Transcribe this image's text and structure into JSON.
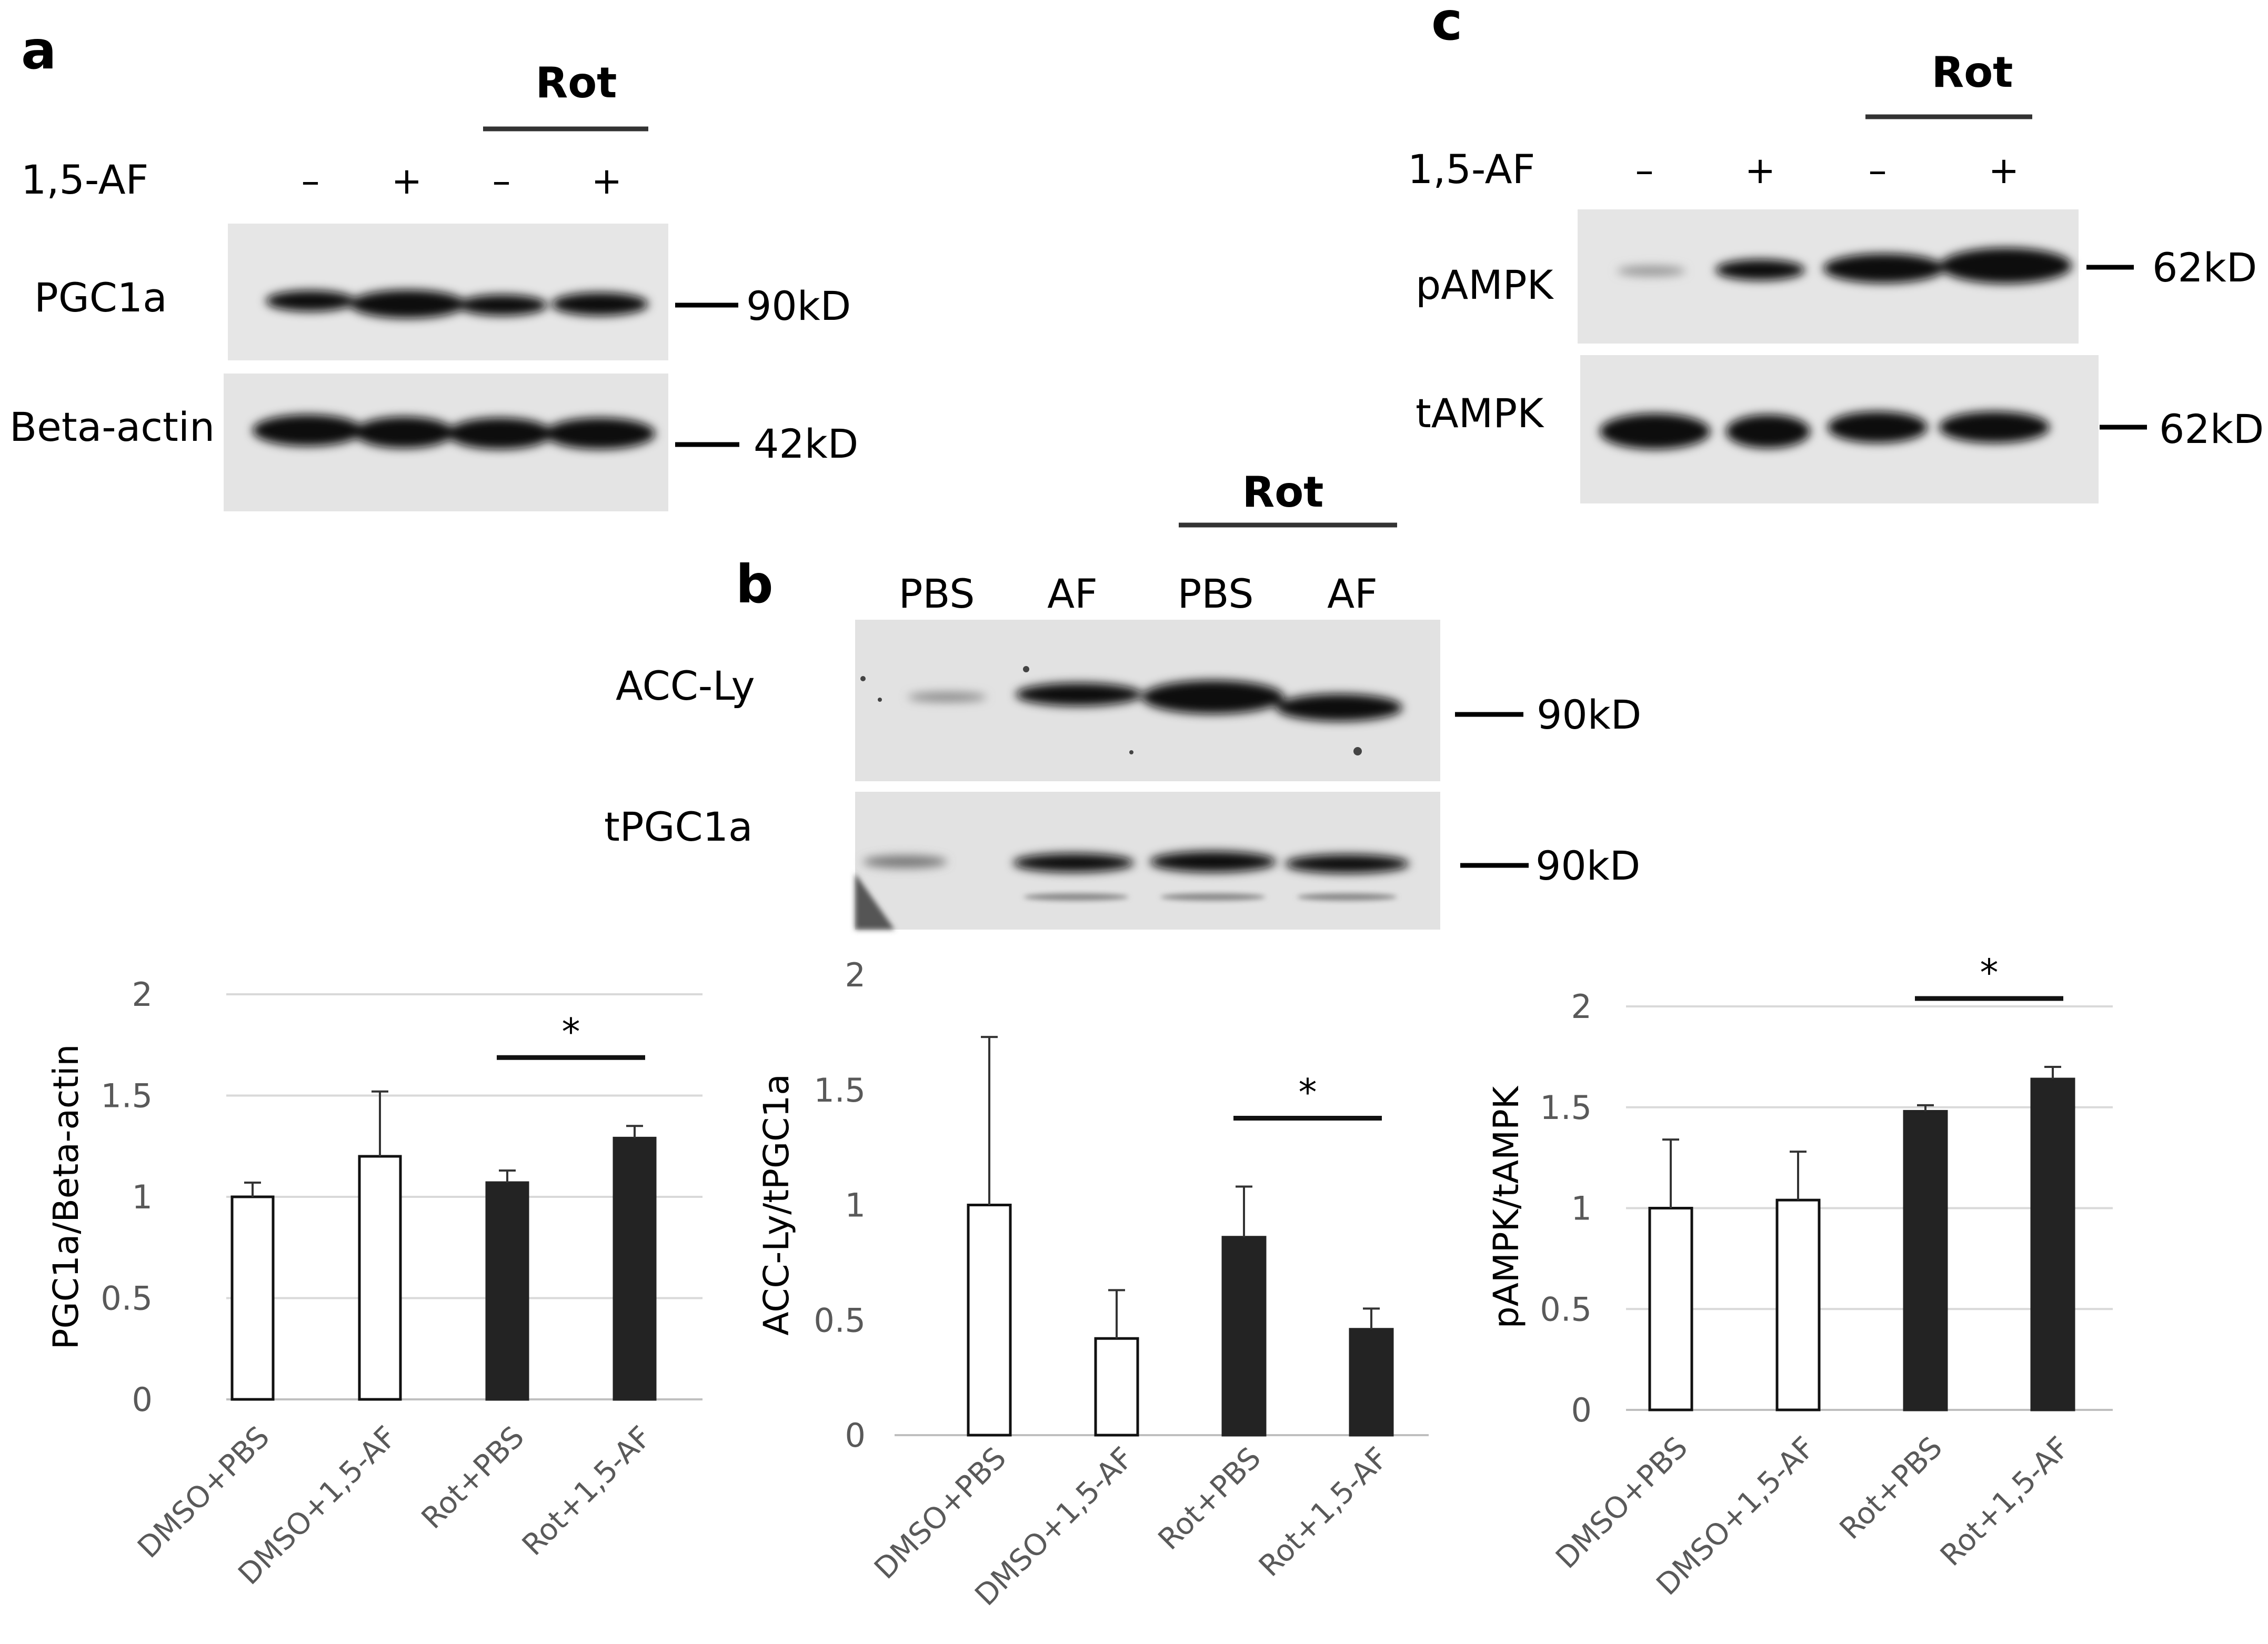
{
  "panels": {
    "a": {
      "letter": "a",
      "rot_label": "Rot",
      "treatment_label": "1,5-AF",
      "signs": [
        "–",
        "+",
        "–",
        "+"
      ],
      "blots": [
        {
          "label": "PGC1a",
          "size_label": "90kD"
        },
        {
          "label": "Beta-actin",
          "size_label": "42kD"
        }
      ]
    },
    "b": {
      "letter": "b",
      "rot_label": "Rot",
      "lane_labels": [
        "PBS",
        "AF",
        "PBS",
        "AF"
      ],
      "blots": [
        {
          "label": "ACC-Ly",
          "size_label": "90kD"
        },
        {
          "label": "tPGC1a",
          "size_label": "90kD"
        }
      ]
    },
    "c": {
      "letter": "c",
      "rot_label": "Rot",
      "treatment_label": "1,5-AF",
      "signs": [
        "–",
        "+",
        "–",
        "+"
      ],
      "blots": [
        {
          "label": "pAMPK",
          "size_label": "62kD"
        },
        {
          "label": "tAMPK",
          "size_label": "62kD"
        }
      ]
    }
  },
  "colors": {
    "control_bar": "#ffffff",
    "rot_bar": "#232323",
    "axis_text": "#595959",
    "gridline": "#d9d9d9"
  },
  "chart_data": [
    {
      "type": "bar",
      "panel": "a",
      "categories": [
        "DMSO+PBS",
        "DMSO+1,5-AF",
        "Rot+PBS",
        "Rot+1,5-AF"
      ],
      "values": [
        1.0,
        1.2,
        1.07,
        1.29
      ],
      "error": [
        0.07,
        0.32,
        0.06,
        0.06
      ],
      "ylabel": "PGC1a/Beta-actin",
      "ylim": [
        0,
        2
      ],
      "yticks": [
        "0",
        "0.5",
        "1",
        "1.5",
        "2"
      ],
      "significance": {
        "between": [
          2,
          3
        ],
        "label": "*"
      },
      "grid": true
    },
    {
      "type": "bar",
      "panel": "b",
      "categories": [
        "DMSO+PBS",
        "DMSO+1,5-AF",
        "Rot+PBS",
        "Rot+1,5-AF"
      ],
      "values": [
        1.0,
        0.42,
        0.86,
        0.46
      ],
      "error": [
        0.73,
        0.21,
        0.22,
        0.09
      ],
      "ylabel": "ACC-Ly/tPGC1a",
      "ylim": [
        0,
        2
      ],
      "yticks": [
        "0",
        "0.5",
        "1",
        "1.5",
        "2"
      ],
      "significance": {
        "between": [
          2,
          3
        ],
        "label": "*"
      },
      "grid": false
    },
    {
      "type": "bar",
      "panel": "c",
      "categories": [
        "DMSO+PBS",
        "DMSO+1,5-AF",
        "Rot+PBS",
        "Rot+1,5-AF"
      ],
      "values": [
        1.0,
        1.04,
        1.48,
        1.64
      ],
      "error": [
        0.34,
        0.24,
        0.03,
        0.06
      ],
      "ylabel": "pAMPK/tAMPK",
      "ylim": [
        0,
        2
      ],
      "yticks": [
        "0",
        "0.5",
        "1",
        "1.5",
        "2"
      ],
      "significance": {
        "between": [
          2,
          3
        ],
        "label": "*"
      },
      "grid": true
    }
  ]
}
